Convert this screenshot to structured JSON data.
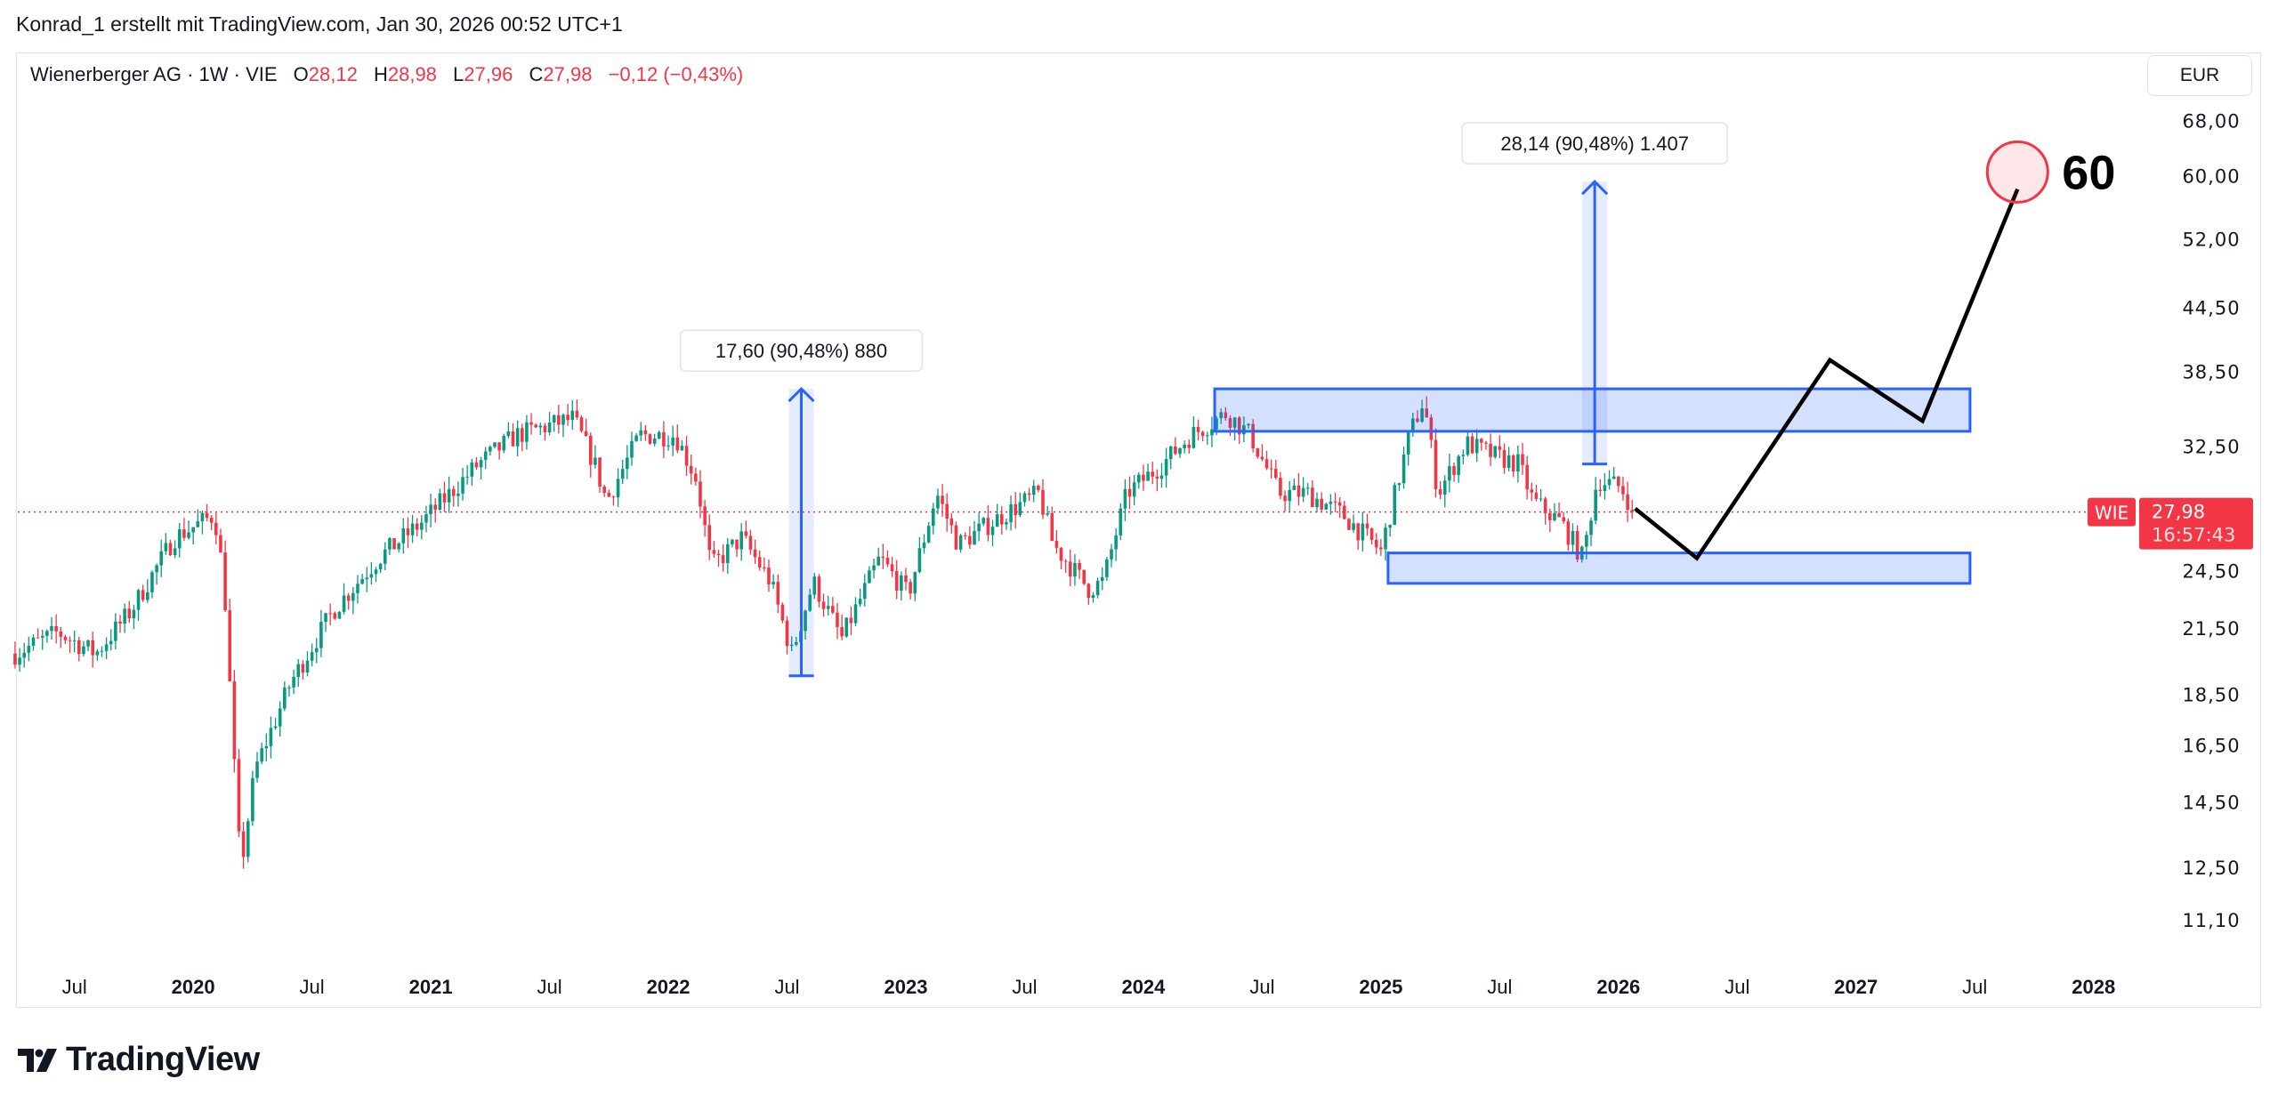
{
  "header": {
    "attribution": "Konrad_1 erstellt mit TradingView.com, Jan 30, 2026 00:52 UTC+1"
  },
  "legend": {
    "symbol": "Wienerberger AG · 1W · VIE",
    "open_label": "O",
    "open": "28,12",
    "high_label": "H",
    "high": "28,98",
    "low_label": "L",
    "low": "27,96",
    "close_label": "C",
    "close": "27,98",
    "change": "−0,12 (−0,43%)"
  },
  "currency_button": "EUR",
  "price_tag": {
    "ticker": "WIE",
    "price": "27,98",
    "countdown": "16:57:43",
    "value": 27.98
  },
  "logo": {
    "text": "TradingView"
  },
  "colors": {
    "up": "#089981",
    "down": "#f23645",
    "zone": "#2962ff",
    "projection": "#000000",
    "target": "#f23645"
  },
  "chart_data": {
    "type": "candlestick",
    "title": "Wienerberger AG · 1W · VIE",
    "yscale": "log",
    "ylim": [
      10.5,
      72
    ],
    "xlim": [
      2019.2,
      2028.3
    ],
    "y_ticks": [
      {
        "value": 68,
        "label": "68,00"
      },
      {
        "value": 60,
        "label": "60,00"
      },
      {
        "value": 52,
        "label": "52,00"
      },
      {
        "value": 44.5,
        "label": "44,50"
      },
      {
        "value": 38.5,
        "label": "38,50"
      },
      {
        "value": 32.5,
        "label": "32,50"
      },
      {
        "value": 24.5,
        "label": "24,50"
      },
      {
        "value": 21.5,
        "label": "21,50"
      },
      {
        "value": 18.5,
        "label": "18,50"
      },
      {
        "value": 16.5,
        "label": "16,50"
      },
      {
        "value": 14.5,
        "label": "14,50"
      },
      {
        "value": 12.5,
        "label": "12,50"
      },
      {
        "value": 11.1,
        "label": "11,10"
      }
    ],
    "x_ticks": [
      {
        "value": 2019.5,
        "label": "Jul",
        "major": false
      },
      {
        "value": 2020,
        "label": "2020",
        "major": true
      },
      {
        "value": 2020.5,
        "label": "Jul",
        "major": false
      },
      {
        "value": 2021,
        "label": "2021",
        "major": true
      },
      {
        "value": 2021.5,
        "label": "Jul",
        "major": false
      },
      {
        "value": 2022,
        "label": "2022",
        "major": true
      },
      {
        "value": 2022.5,
        "label": "Jul",
        "major": false
      },
      {
        "value": 2023,
        "label": "2023",
        "major": true
      },
      {
        "value": 2023.5,
        "label": "Jul",
        "major": false
      },
      {
        "value": 2024,
        "label": "2024",
        "major": true
      },
      {
        "value": 2024.5,
        "label": "Jul",
        "major": false
      },
      {
        "value": 2025,
        "label": "2025",
        "major": true
      },
      {
        "value": 2025.5,
        "label": "Jul",
        "major": false
      },
      {
        "value": 2026,
        "label": "2026",
        "major": true
      },
      {
        "value": 2026.5,
        "label": "Jul",
        "major": false
      },
      {
        "value": 2027,
        "label": "2027",
        "major": true
      },
      {
        "value": 2027.5,
        "label": "Jul",
        "major": false
      },
      {
        "value": 2028,
        "label": "2028",
        "major": true
      }
    ],
    "price_path": [
      [
        2019.25,
        20.3
      ],
      [
        2019.43,
        21.3
      ],
      [
        2019.59,
        20.3
      ],
      [
        2019.74,
        22.4
      ],
      [
        2019.92,
        26.4
      ],
      [
        2020.09,
        27.8
      ],
      [
        2020.13,
        23.9
      ],
      [
        2020.17,
        16.1
      ],
      [
        2020.2,
        12.4
      ],
      [
        2020.26,
        15.6
      ],
      [
        2020.41,
        19.0
      ],
      [
        2020.59,
        22.4
      ],
      [
        2020.78,
        25.2
      ],
      [
        2020.96,
        27.3
      ],
      [
        2021.05,
        28.7
      ],
      [
        2021.2,
        31.2
      ],
      [
        2021.36,
        33.3
      ],
      [
        2021.6,
        34.6
      ],
      [
        2021.69,
        31.2
      ],
      [
        2021.74,
        28.7
      ],
      [
        2021.88,
        33.3
      ],
      [
        2022.03,
        33.3
      ],
      [
        2022.12,
        30.1
      ],
      [
        2022.18,
        24.7
      ],
      [
        2022.31,
        26.4
      ],
      [
        2022.43,
        23.9
      ],
      [
        2022.52,
        20.3
      ],
      [
        2022.61,
        23.9
      ],
      [
        2022.73,
        21.0
      ],
      [
        2022.89,
        25.2
      ],
      [
        2023.01,
        23.2
      ],
      [
        2023.13,
        29.2
      ],
      [
        2023.22,
        26.0
      ],
      [
        2023.41,
        27.8
      ],
      [
        2023.56,
        29.2
      ],
      [
        2023.62,
        26.0
      ],
      [
        2023.77,
        23.5
      ],
      [
        2023.83,
        23.9
      ],
      [
        2023.93,
        29.2
      ],
      [
        2024.08,
        31.2
      ],
      [
        2024.2,
        33.3
      ],
      [
        2024.35,
        35.0
      ],
      [
        2024.45,
        33.3
      ],
      [
        2024.57,
        29.2
      ],
      [
        2024.69,
        29.2
      ],
      [
        2024.84,
        27.8
      ],
      [
        2025.0,
        25.6
      ],
      [
        2025.12,
        33.3
      ],
      [
        2025.18,
        36.1
      ],
      [
        2025.24,
        29.2
      ],
      [
        2025.36,
        32.7
      ],
      [
        2025.49,
        31.7
      ],
      [
        2025.58,
        31.2
      ],
      [
        2025.64,
        28.7
      ],
      [
        2025.76,
        27.3
      ],
      [
        2025.85,
        25.2
      ],
      [
        2025.91,
        30.1
      ],
      [
        2026.01,
        29.6
      ],
      [
        2026.07,
        27.98
      ]
    ],
    "drawings": {
      "zones": [
        {
          "name": "resistance-zone",
          "from": 2024.3,
          "to": 2027.48,
          "top": 37.0,
          "bottom": 33.6
        },
        {
          "name": "support-zone",
          "from": 2025.03,
          "to": 2027.48,
          "top": 25.5,
          "bottom": 23.8
        }
      ],
      "measures": [
        {
          "name": "measure-2022",
          "date": 2022.56,
          "from": 19.3,
          "to": 37.0,
          "label": "17,60 (90,48%) 880"
        },
        {
          "name": "measure-2025",
          "date": 2025.9,
          "from": 31.2,
          "to": 59.2,
          "label": "28,14 (90,48%) 1.407"
        }
      ],
      "projection": [
        [
          2026.07,
          28.2
        ],
        [
          2026.33,
          25.2
        ],
        [
          2026.89,
          39.5
        ],
        [
          2027.28,
          34.4
        ],
        [
          2027.68,
          58.2
        ]
      ],
      "target": {
        "date": 2027.68,
        "price": 60.5,
        "label": "60"
      }
    }
  }
}
